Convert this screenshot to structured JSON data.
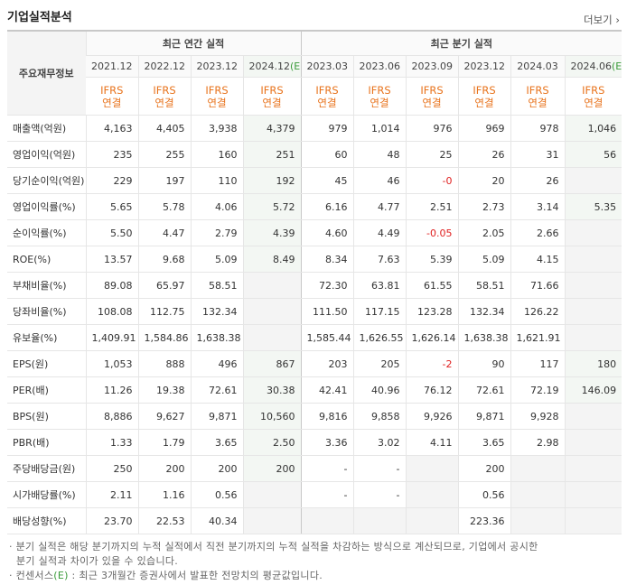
{
  "header": {
    "title": "기업실적분석",
    "more": "더보기"
  },
  "table": {
    "corner": "주요재무정보",
    "groups": [
      {
        "title": "최근 연간 실적",
        "periods": [
          {
            "date": "2021.12"
          },
          {
            "date": "2022.12"
          },
          {
            "date": "2023.12"
          },
          {
            "date": "2024.12",
            "estimate": "(E)"
          }
        ]
      },
      {
        "title": "최근 분기 실적",
        "periods": [
          {
            "date": "2023.03"
          },
          {
            "date": "2023.06"
          },
          {
            "date": "2023.09"
          },
          {
            "date": "2023.12"
          },
          {
            "date": "2024.03"
          },
          {
            "date": "2024.06",
            "estimate": "(E)"
          }
        ]
      }
    ],
    "basis": {
      "standard": "IFRS",
      "scope": "연결"
    },
    "rows": [
      {
        "label": "매출액(억원)",
        "values": [
          "4,163",
          "4,405",
          "3,938",
          "4,379",
          "979",
          "1,014",
          "976",
          "969",
          "978",
          "1,046"
        ]
      },
      {
        "label": "영업이익(억원)",
        "values": [
          "235",
          "255",
          "160",
          "251",
          "60",
          "48",
          "25",
          "26",
          "31",
          "56"
        ]
      },
      {
        "label": "당기순이익(억원)",
        "values": [
          "229",
          "197",
          "110",
          "192",
          "45",
          "46",
          "-0",
          "20",
          "26",
          null
        ]
      },
      {
        "label": "영업이익률(%)",
        "values": [
          "5.65",
          "5.78",
          "4.06",
          "5.72",
          "6.16",
          "4.77",
          "2.51",
          "2.73",
          "3.14",
          "5.35"
        ]
      },
      {
        "label": "순이익률(%)",
        "values": [
          "5.50",
          "4.47",
          "2.79",
          "4.39",
          "4.60",
          "4.49",
          "-0.05",
          "2.05",
          "2.66",
          null
        ]
      },
      {
        "label": "ROE(%)",
        "values": [
          "13.57",
          "9.68",
          "5.09",
          "8.49",
          "8.34",
          "7.63",
          "5.39",
          "5.09",
          "4.15",
          null
        ]
      },
      {
        "label": "부채비율(%)",
        "values": [
          "89.08",
          "65.97",
          "58.51",
          null,
          "72.30",
          "63.81",
          "61.55",
          "58.51",
          "71.66",
          null
        ]
      },
      {
        "label": "당좌비율(%)",
        "values": [
          "108.08",
          "112.75",
          "132.34",
          null,
          "111.50",
          "117.15",
          "123.28",
          "132.34",
          "126.22",
          null
        ]
      },
      {
        "label": "유보율(%)",
        "values": [
          "1,409.91",
          "1,584.86",
          "1,638.38",
          null,
          "1,585.44",
          "1,626.55",
          "1,626.14",
          "1,638.38",
          "1,621.91",
          null
        ]
      },
      {
        "label": "EPS(원)",
        "values": [
          "1,053",
          "888",
          "496",
          "867",
          "203",
          "205",
          "-2",
          "90",
          "117",
          "180"
        ]
      },
      {
        "label": "PER(배)",
        "values": [
          "11.26",
          "19.38",
          "72.61",
          "30.38",
          "42.41",
          "40.96",
          "76.12",
          "72.61",
          "72.19",
          "146.09"
        ]
      },
      {
        "label": "BPS(원)",
        "values": [
          "8,886",
          "9,627",
          "9,871",
          "10,560",
          "9,816",
          "9,858",
          "9,926",
          "9,871",
          "9,928",
          null
        ]
      },
      {
        "label": "PBR(배)",
        "values": [
          "1.33",
          "1.79",
          "3.65",
          "2.50",
          "3.36",
          "3.02",
          "4.11",
          "3.65",
          "2.98",
          null
        ]
      },
      {
        "label": "주당배당금(원)",
        "values": [
          "250",
          "200",
          "200",
          "200",
          "-",
          "-",
          null,
          "200",
          null,
          null
        ]
      },
      {
        "label": "시가배당률(%)",
        "values": [
          "2.11",
          "1.16",
          "0.56",
          null,
          "-",
          "-",
          null,
          "0.56",
          null,
          null
        ]
      },
      {
        "label": "배당성향(%)",
        "values": [
          "23.70",
          "22.53",
          "40.34",
          null,
          null,
          null,
          null,
          "223.36",
          null,
          null
        ]
      }
    ]
  },
  "notes": {
    "quarterly": "분기 실적은 해당 분기까지의 누적 실적에서 직전 분기까지의 누적 실적을 차감하는 방식으로 계산되므로, 기업에서 공시한 분기 실적과 차이가 있을 수 있습니다.",
    "consensus": {
      "term": "컨센서스",
      "mark": "(E)",
      "text": ": 최근 3개월간 증권사에서 발표한 전망치의 평균값입니다."
    }
  }
}
